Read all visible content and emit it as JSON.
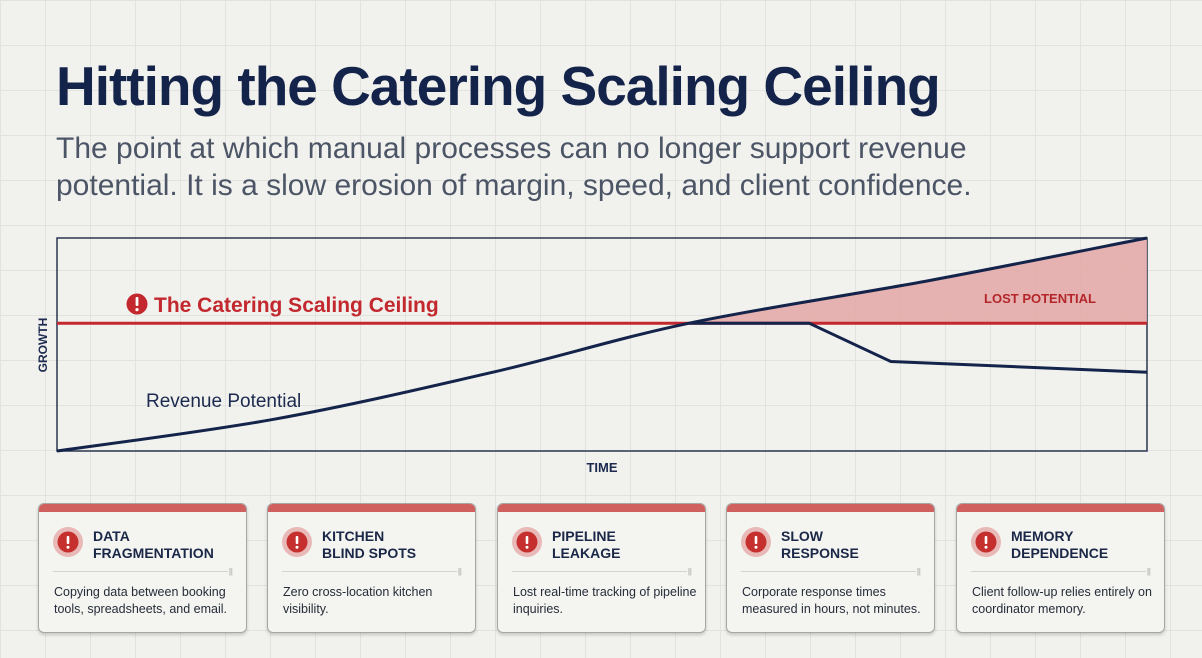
{
  "header": {
    "title": "Hitting the Catering Scaling Ceiling",
    "subtitle": "The point at which manual processes can no longer support revenue potential.  It is a slow erosion of margin, speed, and client confidence."
  },
  "diagram": {
    "ceiling_label": "The Catering Scaling Ceiling",
    "lost_label": "LOST POTENTIAL",
    "revenue_label": "Revenue Potential",
    "y_axis_label": "GROWTH",
    "x_axis_label": "TIME",
    "ceiling_level": 0.6,
    "revenue_curve": [
      [
        0,
        0
      ],
      [
        0.2,
        0.15
      ],
      [
        0.4,
        0.37
      ],
      [
        0.58,
        0.6
      ],
      [
        0.8,
        0.8
      ],
      [
        1.0,
        1.0
      ]
    ],
    "actual_curve": [
      [
        0.58,
        0.6
      ],
      [
        0.69,
        0.6
      ],
      [
        0.765,
        0.42
      ],
      [
        1.0,
        0.37
      ]
    ],
    "colors": {
      "navy": "#14234a",
      "ceiling_red": "#c2282d",
      "lost_fill": "#e3a7a6",
      "card_accent": "#d0605e"
    }
  },
  "cards": [
    {
      "title": "DATA\nFRAGMENTATION",
      "description": "Copying data between booking tools, spreadsheets, and email.",
      "icon": "alert-icon"
    },
    {
      "title": "KITCHEN\nBLIND SPOTS",
      "description": "Zero cross-location kitchen visibility.",
      "icon": "alert-icon"
    },
    {
      "title": "PIPELINE\nLEAKAGE",
      "description": "Lost real-time tracking of pipeline inquiries.",
      "icon": "alert-icon"
    },
    {
      "title": "SLOW\nRESPONSE",
      "description": "Corporate response times measured in hours, not minutes.",
      "icon": "alert-icon"
    },
    {
      "title": "MEMORY\nDEPENDENCE",
      "description": "Client follow-up relies entirely on coordinator memory.",
      "icon": "alert-icon"
    }
  ]
}
